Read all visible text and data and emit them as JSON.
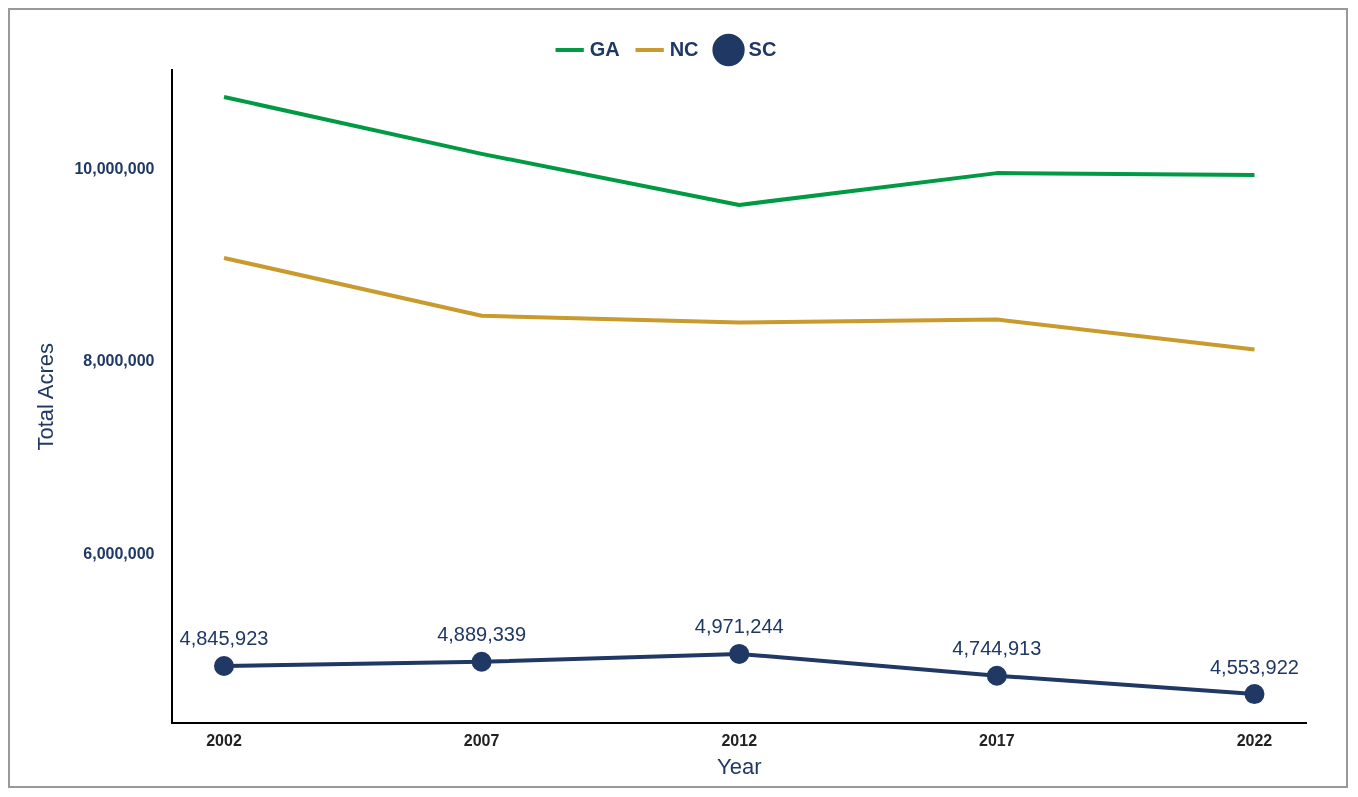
{
  "chart_data": {
    "type": "line",
    "xlabel": "Year",
    "ylabel": "Total Acres",
    "x": [
      2002,
      2007,
      2012,
      2017,
      2022
    ],
    "xlim": [
      2001,
      2023
    ],
    "xticks": [
      2002,
      2007,
      2012,
      2017,
      2022
    ],
    "ylim": [
      4250000,
      11030000
    ],
    "yticks": [
      {
        "value": 6000000,
        "label": "6,000,000"
      },
      {
        "value": 8000000,
        "label": "8,000,000"
      },
      {
        "value": 10000000,
        "label": "10,000,000"
      }
    ],
    "grid": false,
    "legend": "top",
    "series": [
      {
        "name": "GA",
        "color": "#009a44",
        "values": [
          10750000,
          10160000,
          9630000,
          9960000,
          9940000
        ]
      },
      {
        "name": "NC",
        "color": "#c99a2e",
        "values": [
          9080000,
          8480000,
          8410000,
          8440000,
          8130000
        ]
      },
      {
        "name": "SC",
        "color": "#1f3864",
        "marker": "circle",
        "values": [
          4845923,
          4889339,
          4971244,
          4744913,
          4553922
        ],
        "value_labels": [
          "4,845,923",
          "4,889,339",
          "4,971,244",
          "4,744,913",
          "4,553,922"
        ]
      }
    ]
  }
}
